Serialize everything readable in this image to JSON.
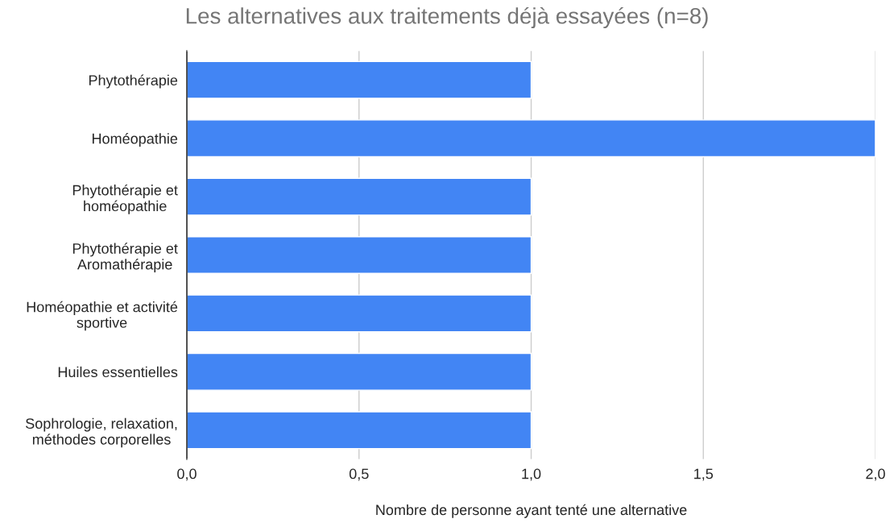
{
  "chart_data": {
    "type": "bar",
    "orientation": "horizontal",
    "title": "Les alternatives aux traitements déjà essayées (n=8)",
    "xlabel": "Nombre de personne ayant tenté une alternative",
    "categories": [
      "Phytothérapie",
      "Homéopathie",
      "Phytothérapie et\nhoméopathie",
      "Phytothérapie et\nAromathérapie",
      "Homéopathie et activité\nsportive",
      "Huiles essentielles",
      "Sophrologie, relaxation,\nméthodes corporelles"
    ],
    "values": [
      1,
      2,
      1,
      1,
      1,
      1,
      1
    ],
    "color": "#4285f4",
    "xlim": [
      0,
      2
    ],
    "xticks": [
      {
        "value": 0,
        "label": "0,0"
      },
      {
        "value": 0.5,
        "label": "0,5"
      },
      {
        "value": 1,
        "label": "1,0"
      },
      {
        "value": 1.5,
        "label": "1,5"
      },
      {
        "value": 2,
        "label": "2,0"
      }
    ],
    "grid": "x"
  }
}
